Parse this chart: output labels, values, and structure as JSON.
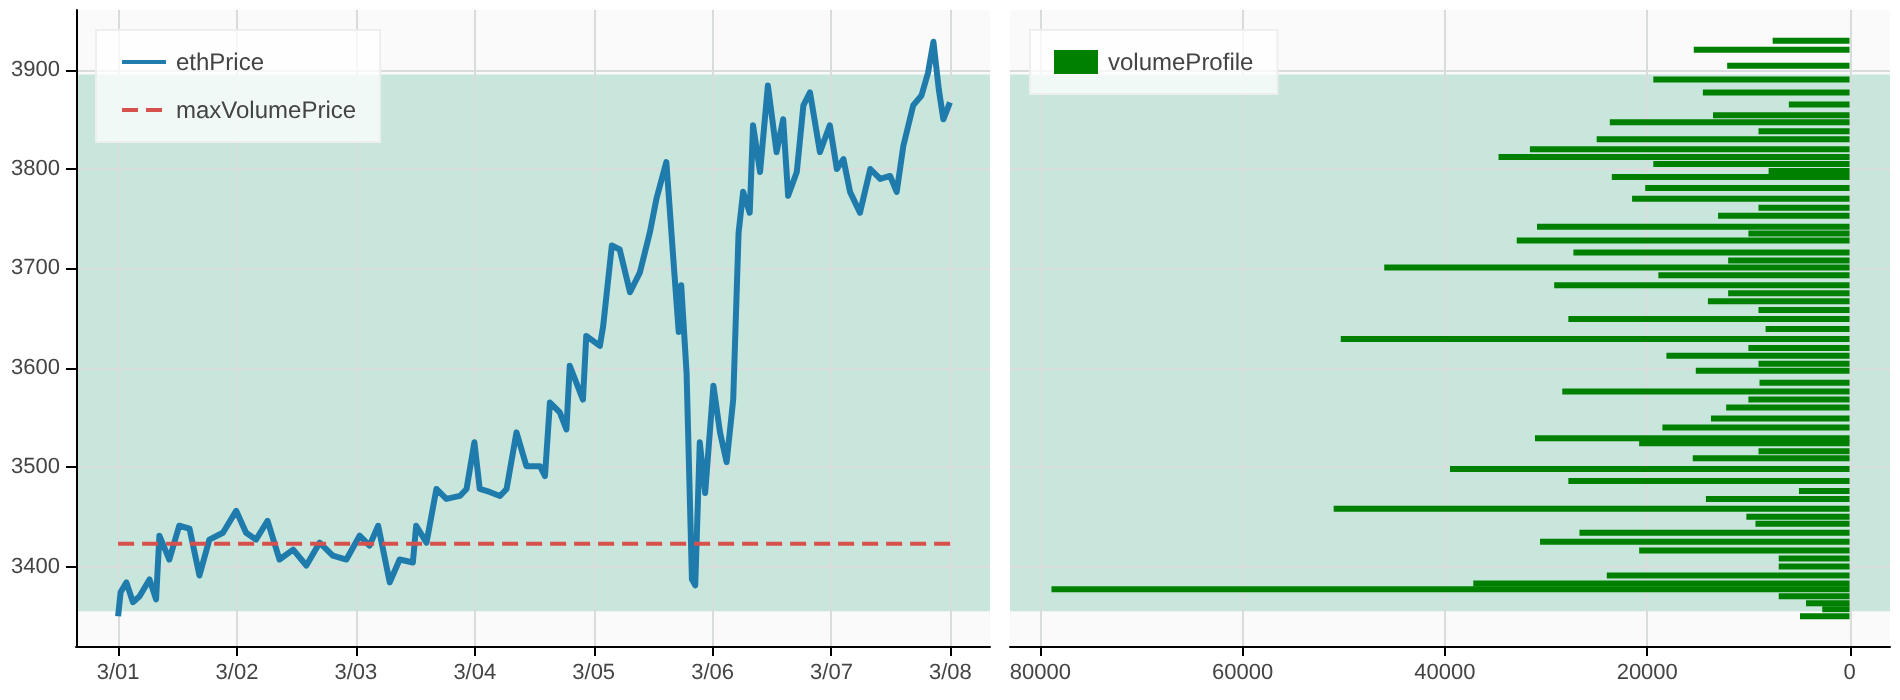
{
  "chart_data": [
    {
      "type": "line",
      "xlim": [
        "--02-29T15:30",
        "--03-08T08:00"
      ],
      "ylim": [
        3320,
        3960
      ],
      "xticks": [
        {
          "value": "--03-01",
          "label": "3/01"
        },
        {
          "value": "--03-02",
          "label": "3/02"
        },
        {
          "value": "--03-03",
          "label": "3/03"
        },
        {
          "value": "--03-04",
          "label": "3/04"
        },
        {
          "value": "--03-05",
          "label": "3/05"
        },
        {
          "value": "--03-06",
          "label": "3/06"
        },
        {
          "value": "--03-07",
          "label": "3/07"
        },
        {
          "value": "--03-08",
          "label": "3/08"
        }
      ],
      "yticks": [
        3400,
        3500,
        3600,
        3700,
        3800,
        3900
      ],
      "grid": true,
      "legend": "top left",
      "bands": [
        {
          "axis": "y",
          "from": 3355,
          "to": 3895,
          "color": "#c8e6dc"
        }
      ],
      "series": [
        {
          "name": "ethPrice",
          "color": "#1f7bab",
          "line_style": "solid",
          "x": [
            "--03-01T00:00",
            "--03-01T00:30",
            "--03-01T01:40",
            "--03-01T03:00",
            "--03-01T04:20",
            "--03-01T06:20",
            "--03-01T07:40",
            "--03-01T08:20",
            "--03-01T10:20",
            "--03-01T12:20",
            "--03-01T14:25",
            "--03-01T16:25",
            "--03-01T18:25",
            "--03-01T21:10",
            "--03-01T23:50",
            "--03-02T01:50",
            "--03-02T03:50",
            "--03-02T06:10",
            "--03-02T08:35",
            "--03-02T11:20",
            "--03-02T14:00",
            "--03-02T16:40",
            "--03-02T19:20",
            "--03-02T22:05",
            "--03-03T00:45",
            "--03-03T02:45",
            "--03-03T04:30",
            "--03-03T06:50",
            "--03-03T08:50",
            "--03-03T11:30",
            "--03-03T12:10",
            "--03-03T14:15",
            "--03-03T16:15",
            "--03-03T18:15",
            "--03-03T21:00",
            "--03-03T22:20",
            "--03-03T23:55",
            "--03-04T01:00",
            "--03-04T03:00",
            "--03-04T05:05",
            "--03-04T06:25",
            "--03-04T08:25",
            "--03-04T10:25",
            "--03-04T13:10",
            "--03-04T14:10",
            "--03-04T15:10",
            "--03-04T17:10",
            "--03-04T18:30",
            "--03-04T19:10",
            "--03-04T21:50",
            "--03-04T22:30",
            "--03-05T01:15",
            "--03-05T01:55",
            "--03-05T03:40",
            "--03-05T05:15",
            "--03-05T07:20",
            "--03-05T09:20",
            "--03-05T11:20",
            "--03-05T12:40",
            "--03-05T14:40",
            "--03-05T16:05",
            "--03-05T17:10",
            "--03-05T17:40",
            "--03-05T18:45",
            "--03-05T19:50",
            "--03-05T20:30",
            "--03-05T21:25",
            "--03-05T22:30",
            "--03-06T00:10",
            "--03-06T01:30",
            "--03-06T02:50",
            "--03-06T04:10",
            "--03-06T05:15",
            "--03-06T06:10",
            "--03-06T07:30",
            "--03-06T08:10",
            "--03-06T09:35",
            "--03-06T11:10",
            "--03-06T12:55",
            "--03-06T14:15",
            "--03-06T15:15",
            "--03-06T17:00",
            "--03-06T18:20",
            "--03-06T19:40",
            "--03-06T21:40",
            "--03-06T23:40",
            "--03-07T01:05",
            "--03-07T02:25",
            "--03-07T03:45",
            "--03-07T05:45",
            "--03-07T07:50",
            "--03-07T09:50",
            "--03-07T11:50",
            "--03-07T13:10",
            "--03-07T14:30",
            "--03-07T16:30",
            "--03-07T18:10",
            "--03-07T19:30",
            "--03-07T20:35",
            "--03-07T21:40",
            "--03-07T22:35",
            "--03-07T23:55"
          ],
          "values": [
            3350,
            3374,
            3384,
            3364,
            3370,
            3387,
            3367,
            3431,
            3407,
            3441,
            3438,
            3391,
            3427,
            3434,
            3456,
            3434,
            3427,
            3446,
            3407,
            3417,
            3401,
            3424,
            3411,
            3407,
            3431,
            3421,
            3441,
            3384,
            3407,
            3404,
            3441,
            3424,
            3478,
            3468,
            3471,
            3478,
            3525,
            3478,
            3475,
            3471,
            3478,
            3535,
            3501,
            3501,
            3491,
            3565,
            3555,
            3538,
            3602,
            3568,
            3632,
            3622,
            3642,
            3723,
            3719,
            3676,
            3696,
            3736,
            3770,
            3807,
            3709,
            3636,
            3683,
            3595,
            3387,
            3381,
            3525,
            3474,
            3582,
            3535,
            3505,
            3568,
            3736,
            3777,
            3756,
            3844,
            3797,
            3884,
            3817,
            3850,
            3773,
            3797,
            3864,
            3877,
            3817,
            3844,
            3800,
            3810,
            3777,
            3756,
            3800,
            3790,
            3793,
            3777,
            3823,
            3864,
            3874,
            3897,
            3928,
            3880,
            3850,
            3867
          ]
        },
        {
          "name": "maxVolumePrice",
          "color": "#d6504c",
          "line_style": "dashed",
          "x": [
            "--03-01",
            "--03-08"
          ],
          "values": [
            3423,
            3423
          ]
        }
      ]
    },
    {
      "type": "bar",
      "orientation": "horizontal",
      "xlim": [
        83000,
        -4000
      ],
      "xticks": [
        80000,
        60000,
        40000,
        20000,
        0
      ],
      "ylim": [
        3320,
        3960
      ],
      "yticks": [
        {
          "value": 3400,
          "label": null
        },
        {
          "value": 3500,
          "label": null
        },
        {
          "value": 3600,
          "label": null
        },
        {
          "value": 3700,
          "label": null
        },
        {
          "value": 3800,
          "label": null
        },
        {
          "value": 3900,
          "label": null
        }
      ],
      "tick_labels": "x",
      "grid": true,
      "legend": "top left",
      "bands": [
        {
          "axis": "y",
          "from": 3355,
          "to": 3895,
          "color": "#c8e6dc"
        }
      ],
      "x": [
        3929,
        3920,
        3904,
        3890,
        3877,
        3865,
        3854,
        3847,
        3838,
        3830,
        3820,
        3812,
        3805,
        3798,
        3792,
        3781,
        3770,
        3761,
        3753,
        3742,
        3735,
        3728,
        3716,
        3708,
        3701,
        3693,
        3683,
        3675,
        3667,
        3658,
        3649,
        3639,
        3629,
        3620,
        3612,
        3604,
        3597,
        3585,
        3576,
        3568,
        3560,
        3549,
        3540,
        3529,
        3524,
        3516,
        3509,
        3498,
        3486,
        3476,
        3468,
        3458,
        3450,
        3443,
        3434,
        3425,
        3416,
        3408,
        3400,
        3391,
        3383,
        3377,
        3370,
        3363,
        3357,
        3350
      ],
      "series": [
        {
          "name": "volumeProfile",
          "color": "#008000",
          "values": [
            7600,
            15400,
            12100,
            19400,
            14500,
            6000,
            13500,
            23700,
            9000,
            25000,
            31600,
            34700,
            19400,
            8000,
            23500,
            20200,
            21500,
            9000,
            13000,
            30900,
            10000,
            32900,
            27300,
            12000,
            46000,
            18900,
            29200,
            12000,
            14000,
            9000,
            27800,
            8300,
            50300,
            10000,
            18100,
            9000,
            15200,
            8900,
            28400,
            10000,
            12200,
            13700,
            18500,
            31100,
            20800,
            9000,
            15500,
            39500,
            27800,
            5000,
            14200,
            51000,
            10200,
            9300,
            26700,
            30600,
            20800,
            7000,
            7000,
            24000,
            37200,
            78900,
            7000,
            4300,
            2700,
            4900
          ]
        }
      ]
    }
  ]
}
